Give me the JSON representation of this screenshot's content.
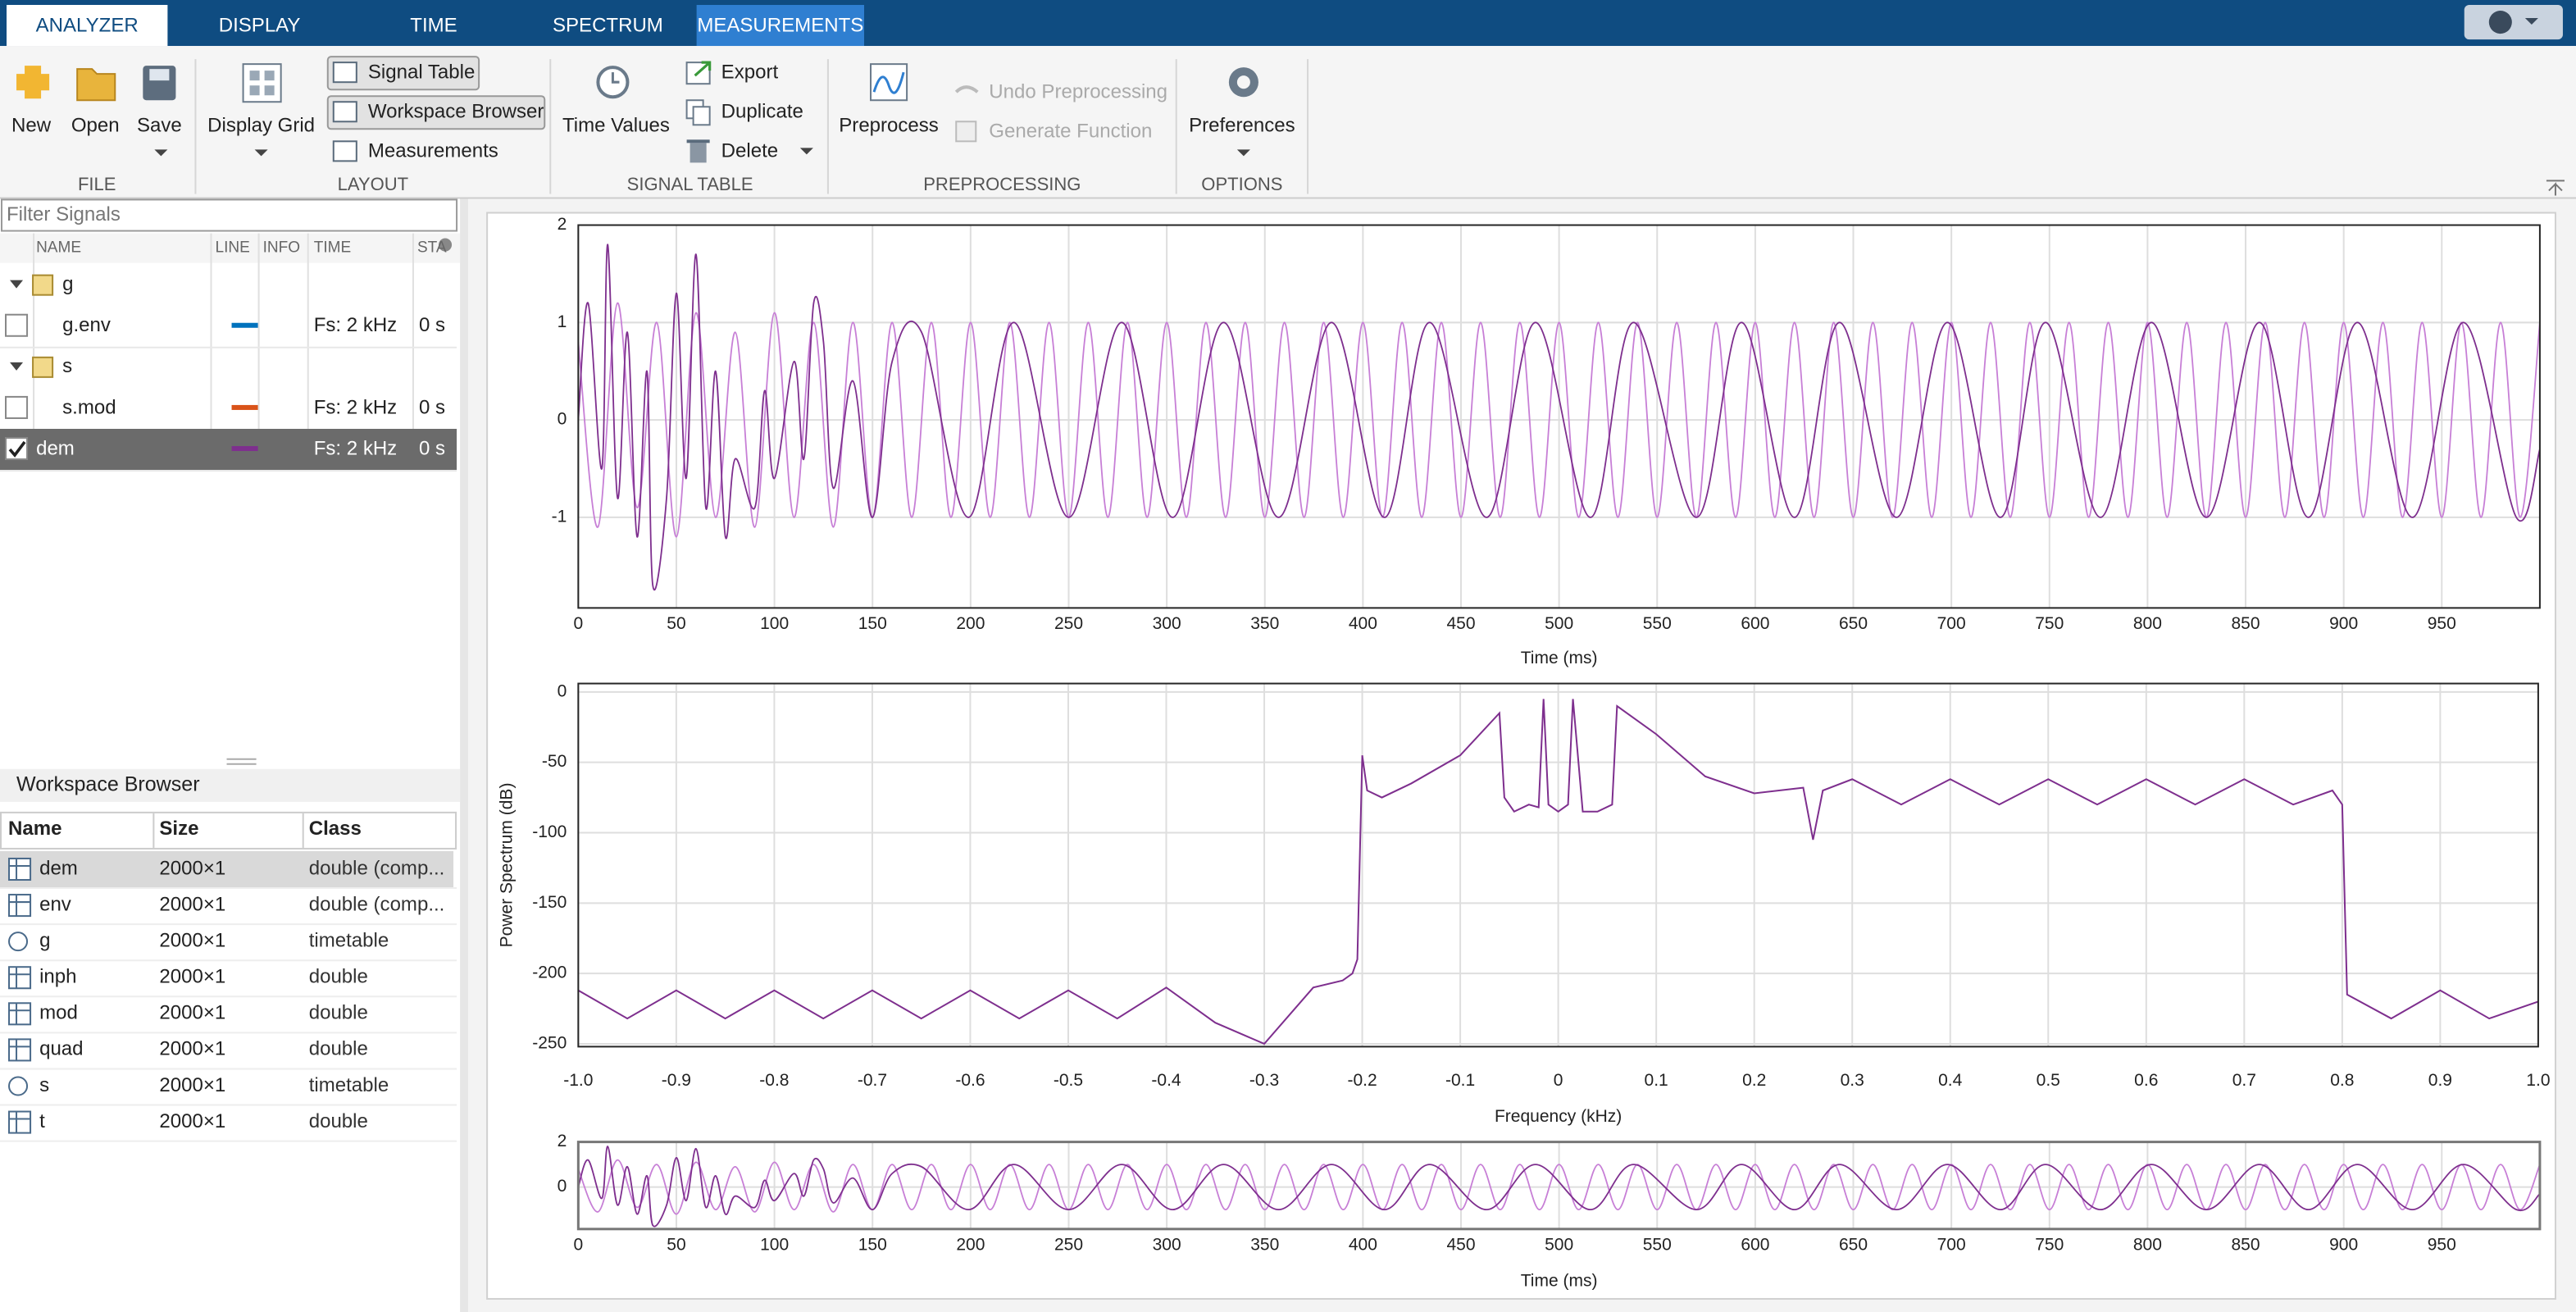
{
  "tabs": [
    "ANALYZER",
    "DISPLAY",
    "TIME",
    "SPECTRUM",
    "MEASUREMENTS"
  ],
  "toolstrip": {
    "file": {
      "label": "FILE",
      "new": "New",
      "open": "Open",
      "save": "Save"
    },
    "layout": {
      "label": "LAYOUT",
      "display_grid": "Display Grid",
      "signal_table": "Signal Table",
      "workspace_browser": "Workspace Browser",
      "measurements": "Measurements"
    },
    "signal_table": {
      "label": "SIGNAL TABLE",
      "time_values": "Time Values",
      "export": "Export",
      "duplicate": "Duplicate",
      "delete": "Delete"
    },
    "preprocessing": {
      "label": "PREPROCESSING",
      "preprocess": "Preprocess",
      "undo": "Undo Preprocessing",
      "generate": "Generate Function"
    },
    "options": {
      "label": "OPTIONS",
      "preferences": "Preferences"
    }
  },
  "filter_placeholder": "Filter Signals",
  "signal_table": {
    "columns": [
      "NAME",
      "LINE",
      "INFO",
      "TIME",
      "STA"
    ],
    "rows": [
      {
        "name": "g",
        "children": [
          {
            "name": "g.env",
            "line": "#0072BD",
            "time": "Fs: 2 kHz",
            "start": "0 s",
            "checked": false
          }
        ]
      },
      {
        "name": "s",
        "children": [
          {
            "name": "s.mod",
            "line": "#D95319",
            "time": "Fs: 2 kHz",
            "start": "0 s",
            "checked": false
          }
        ]
      },
      {
        "name": "dem",
        "line": "#7E2F8E",
        "time": "Fs: 2 kHz",
        "start": "0 s",
        "checked": true,
        "selected": true
      }
    ]
  },
  "workspace": {
    "title": "Workspace Browser",
    "columns": [
      "Name",
      "Size",
      "Class"
    ],
    "selected_row": 0,
    "rows": [
      [
        "dem",
        "2000×1",
        "double (comp..."
      ],
      [
        "env",
        "2000×1",
        "double (comp..."
      ],
      [
        "g",
        "2000×1",
        "timetable"
      ],
      [
        "inph",
        "2000×1",
        "double"
      ],
      [
        "mod",
        "2000×1",
        "double"
      ],
      [
        "quad",
        "2000×1",
        "double"
      ],
      [
        "s",
        "2000×1",
        "timetable"
      ],
      [
        "t",
        "2000×1",
        "double"
      ]
    ]
  },
  "plots": [
    {
      "xlabel": "Time (ms)",
      "xlim": [
        0,
        1000
      ],
      "ylim": [
        -1.93,
        2
      ],
      "grid": true,
      "xticks": [
        0,
        50,
        100,
        150,
        200,
        250,
        300,
        350,
        400,
        450,
        500,
        550,
        600,
        650,
        700,
        750,
        800,
        850,
        900,
        950
      ],
      "yticks": [
        -1,
        0,
        1,
        2
      ],
      "series": [
        {
          "color": "#C77FD6",
          "x": [
            0,
            10,
            20,
            30,
            40,
            50,
            60,
            70,
            80,
            90,
            100,
            110,
            120,
            130,
            140,
            150,
            160,
            170,
            180,
            190,
            200,
            210,
            220,
            230,
            240,
            250,
            260,
            270,
            280,
            290,
            300,
            310,
            320,
            330,
            340,
            350,
            360,
            370,
            380,
            390,
            400,
            410,
            420,
            430,
            440,
            450,
            460,
            470,
            480,
            490,
            500,
            510,
            520,
            530,
            540,
            550,
            560,
            570,
            580,
            590,
            600,
            610,
            620,
            630,
            640,
            650,
            660,
            670,
            680,
            690,
            700,
            710,
            720,
            730,
            740,
            750,
            760,
            770,
            780,
            790,
            800,
            810,
            820,
            830,
            840,
            850,
            860,
            870,
            880,
            890,
            900,
            910,
            920,
            930,
            940,
            950,
            960,
            970,
            980,
            990,
            1000
          ],
          "y": [
            0.8,
            -1.1,
            1.2,
            -0.9,
            1.0,
            -1.2,
            1.1,
            -1.0,
            0.9,
            -1.1,
            1.1,
            -1.0,
            1.0,
            -1.1,
            1.0,
            -1,
            1,
            -1,
            1,
            -1,
            1,
            -1,
            1,
            -1,
            1,
            -1,
            1,
            -1,
            1,
            -1,
            1,
            -1,
            1,
            -1,
            1,
            -1,
            1,
            -1,
            1,
            -1,
            1,
            -1,
            1,
            -1,
            1,
            -1,
            1,
            -1,
            1,
            -1,
            1,
            -1,
            1,
            -1,
            1,
            -1,
            1,
            -1,
            1,
            -1,
            1,
            -1,
            1,
            -1,
            1,
            -1,
            1,
            -1,
            1,
            -1,
            1,
            -1,
            1,
            -1,
            1,
            -1,
            1,
            -1,
            1,
            -1,
            1,
            -1,
            1,
            -1,
            1,
            -1,
            1,
            -1,
            1,
            -1,
            1,
            -1,
            1,
            -1,
            1,
            -1,
            1,
            -1,
            1,
            -1,
            1
          ]
        },
        {
          "color": "#7E2F8E",
          "x": [
            0,
            5,
            12,
            15,
            20,
            25,
            30,
            35,
            38,
            45,
            50,
            55,
            60,
            65,
            70,
            75,
            80,
            90,
            95,
            100,
            110,
            115,
            120,
            125,
            130,
            140,
            150,
            160,
            175,
            199,
            222,
            250,
            277,
            303,
            329,
            357,
            384,
            411,
            434,
            463,
            488,
            516,
            538,
            570,
            593,
            620,
            643,
            672,
            698,
            725,
            748,
            776,
            802,
            830,
            857,
            882,
            907,
            935,
            961,
            988,
            1000
          ],
          "y": [
            0,
            1.2,
            -0.5,
            1.8,
            -0.8,
            0.9,
            -1.2,
            0.5,
            -1.7,
            -0.8,
            1.3,
            -0.6,
            1.7,
            -0.9,
            0.5,
            -1.2,
            -0.4,
            -0.9,
            0.3,
            -0.6,
            0.6,
            -0.4,
            1.2,
            0.8,
            -0.7,
            0.4,
            -1.0,
            0.6,
            0.9,
            -1,
            1,
            -1,
            1,
            -1,
            1,
            -1,
            1,
            -1,
            1,
            -1,
            1,
            -1,
            1,
            -1,
            1,
            -1,
            1,
            -1,
            1,
            -1,
            1,
            -1,
            1,
            -1,
            1,
            -1,
            1,
            -1,
            1,
            -1,
            -0.3
          ]
        }
      ]
    },
    {
      "xlabel": "Frequency (kHz)",
      "ylabel": "Power Spectrum (dB)",
      "xlim": [
        -1,
        1
      ],
      "ylim": [
        -252,
        6
      ],
      "grid": true,
      "xticks": [
        {
          "value": -1,
          "label": "-1.0"
        },
        -0.9,
        -0.8,
        -0.7,
        -0.6,
        -0.5,
        -0.4,
        -0.3,
        -0.2,
        -0.1,
        0,
        0.1,
        0.2,
        0.3,
        0.4,
        0.5,
        0.6,
        0.7,
        0.8,
        0.9,
        {
          "value": 1,
          "label": "1.0"
        }
      ],
      "yticks": [
        -250,
        -200,
        -150,
        -100,
        -50,
        0
      ],
      "series": [
        {
          "color": "#7E2F8E",
          "x": [
            -1,
            -0.95,
            -0.9,
            -0.85,
            -0.8,
            -0.75,
            -0.7,
            -0.65,
            -0.6,
            -0.55,
            -0.5,
            -0.45,
            -0.4,
            -0.35,
            -0.3,
            -0.25,
            -0.22,
            -0.21,
            -0.205,
            -0.2,
            -0.195,
            -0.18,
            -0.15,
            -0.1,
            -0.06,
            -0.055,
            -0.045,
            -0.03,
            -0.02,
            -0.015,
            -0.01,
            0,
            0.01,
            0.015,
            0.025,
            0.04,
            0.055,
            0.06,
            0.1,
            0.15,
            0.2,
            0.25,
            0.26,
            0.27,
            0.3,
            0.35,
            0.4,
            0.45,
            0.5,
            0.55,
            0.6,
            0.65,
            0.7,
            0.75,
            0.79,
            0.8,
            0.805,
            0.85,
            0.9,
            0.95,
            1
          ],
          "y": [
            -212,
            -232,
            -212,
            -232,
            -212,
            -232,
            -212,
            -232,
            -212,
            -232,
            -212,
            -232,
            -210,
            -235,
            -250,
            -210,
            -205,
            -200,
            -190,
            -45,
            -70,
            -75,
            -65,
            -45,
            -15,
            -75,
            -85,
            -80,
            -82,
            -5,
            -80,
            -85,
            -80,
            -5,
            -85,
            -85,
            -80,
            -10,
            -30,
            -60,
            -72,
            -68,
            -105,
            -70,
            -62,
            -80,
            -62,
            -80,
            -62,
            -80,
            -62,
            -80,
            -62,
            -80,
            -70,
            -80,
            -215,
            -232,
            -212,
            -232,
            -220
          ]
        }
      ]
    },
    {
      "xlabel": "Time (ms)",
      "xlim": [
        0,
        1000
      ],
      "ylim": [
        -1.86,
        2
      ],
      "grid": true,
      "xticks": [
        0,
        50,
        100,
        150,
        200,
        250,
        300,
        350,
        400,
        450,
        500,
        550,
        600,
        650,
        700,
        750,
        800,
        850,
        900,
        950
      ],
      "yticks": [
        0,
        2
      ]
    }
  ]
}
